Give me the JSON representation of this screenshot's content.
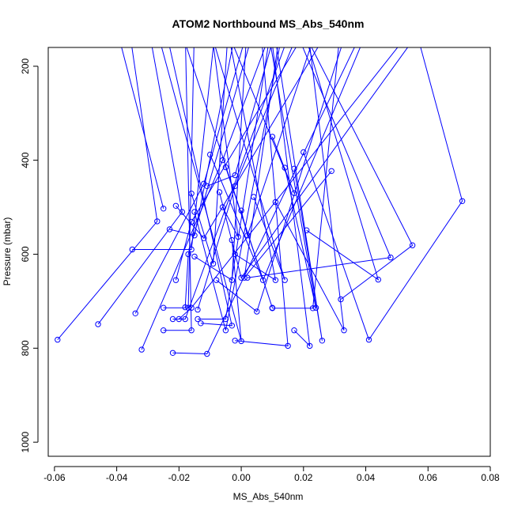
{
  "chart_data": {
    "type": "line",
    "title": "ATOM2 Northbound MS_Abs_540nm",
    "xlabel": "MS_Abs_540nm",
    "ylabel": "Pressure (mbar)",
    "xlim": [
      -0.062,
      0.08
    ],
    "ylim": [
      1030,
      160
    ],
    "y_axis_reversed": true,
    "x_ticks": [
      -0.06,
      -0.04,
      -0.02,
      0.0,
      0.02,
      0.04,
      0.06,
      0.08
    ],
    "x_tick_labels": [
      "-0.06",
      "-0.04",
      "-0.02",
      "0.00",
      "0.02",
      "0.04",
      "0.06",
      "0.08"
    ],
    "y_ticks": [
      200,
      400,
      600,
      800,
      1000
    ],
    "y_tick_labels": [
      "200",
      "400",
      "600",
      "800",
      "1000"
    ],
    "grid": false,
    "legend": "none",
    "series_color": "#0000ff",
    "marker": "open-circle",
    "series": [
      {
        "points": [
          [
            -0.059,
            782
          ],
          [
            -0.027,
            530
          ],
          [
            -0.036,
            120
          ]
        ]
      },
      {
        "points": [
          [
            -0.046,
            749
          ],
          [
            -0.019,
            510
          ],
          [
            -0.03,
            110
          ]
        ]
      },
      {
        "points": [
          [
            -0.035,
            590
          ],
          [
            -0.016,
            590
          ],
          [
            -0.008,
            100
          ]
        ]
      },
      {
        "points": [
          [
            -0.034,
            726
          ],
          [
            -0.012,
            450
          ],
          [
            0.003,
            100
          ]
        ]
      },
      {
        "points": [
          [
            -0.032,
            803
          ],
          [
            -0.006,
            400
          ],
          [
            0.011,
            100
          ]
        ]
      },
      {
        "points": [
          [
            -0.025,
            503
          ],
          [
            -0.04,
            120
          ]
        ]
      },
      {
        "points": [
          [
            -0.025,
            714
          ],
          [
            -0.017,
            714
          ],
          [
            -0.015,
            100
          ]
        ]
      },
      {
        "points": [
          [
            -0.025,
            762
          ],
          [
            -0.016,
            762
          ],
          [
            -0.018,
            120
          ]
        ]
      },
      {
        "points": [
          [
            -0.023,
            547
          ],
          [
            -0.015,
            560
          ],
          [
            -0.001,
            100
          ]
        ]
      },
      {
        "points": [
          [
            -0.022,
            738
          ],
          [
            -0.018,
            738
          ],
          [
            0.016,
            120
          ]
        ]
      },
      {
        "points": [
          [
            -0.022,
            810
          ],
          [
            -0.011,
            812
          ],
          [
            0.04,
            110
          ]
        ]
      },
      {
        "points": [
          [
            -0.021,
            655
          ],
          [
            -0.016,
            531
          ],
          [
            0.023,
            100
          ]
        ]
      },
      {
        "points": [
          [
            -0.021,
            497
          ],
          [
            -0.012,
            566
          ],
          [
            0.03,
            100
          ]
        ]
      },
      {
        "points": [
          [
            -0.02,
            738
          ],
          [
            -0.016,
            714
          ],
          [
            0.055,
            120
          ]
        ]
      },
      {
        "points": [
          [
            -0.018,
            713
          ],
          [
            -0.017,
            600
          ],
          [
            0.005,
            100
          ]
        ]
      },
      {
        "points": [
          [
            -0.016,
            471
          ],
          [
            -0.009,
            620
          ],
          [
            -0.004,
            100
          ]
        ]
      },
      {
        "points": [
          [
            -0.015,
            510
          ],
          [
            -0.005,
            762
          ],
          [
            0.014,
            100
          ]
        ]
      },
      {
        "points": [
          [
            -0.015,
            605
          ],
          [
            -0.003,
            655
          ],
          [
            0.002,
            100
          ]
        ]
      },
      {
        "points": [
          [
            -0.014,
            738
          ],
          [
            -0.005,
            738
          ],
          [
            0.01,
            100
          ]
        ]
      },
      {
        "points": [
          [
            -0.014,
            718
          ],
          [
            -0.002,
            455
          ],
          [
            0.02,
            100
          ]
        ]
      },
      {
        "points": [
          [
            -0.013,
            747
          ],
          [
            -0.003,
            752
          ],
          [
            -0.025,
            100
          ]
        ]
      },
      {
        "points": [
          [
            -0.011,
            455
          ],
          [
            -0.002,
            432
          ],
          [
            0.012,
            100
          ]
        ]
      },
      {
        "points": [
          [
            -0.01,
            388
          ],
          [
            0.007,
            655
          ],
          [
            0.042,
            100
          ]
        ]
      },
      {
        "points": [
          [
            -0.008,
            655
          ],
          [
            0.005,
            722
          ],
          [
            0.035,
            100
          ]
        ]
      },
      {
        "points": [
          [
            -0.007,
            468
          ],
          [
            0.0,
            650
          ],
          [
            0.06,
            100
          ]
        ]
      },
      {
        "points": [
          [
            -0.006,
            500
          ],
          [
            -0.001,
            563
          ],
          [
            -0.01,
            100
          ]
        ]
      },
      {
        "points": [
          [
            -0.005,
            415
          ],
          [
            0.01,
            714
          ],
          [
            -0.02,
            110
          ]
        ]
      },
      {
        "points": [
          [
            -0.003,
            570
          ],
          [
            0.0,
            785
          ],
          [
            -0.028,
            100
          ]
        ]
      },
      {
        "points": [
          [
            -0.002,
            600
          ],
          [
            0.011,
            655
          ],
          [
            -0.005,
            100
          ]
        ]
      },
      {
        "points": [
          [
            -0.002,
            784
          ],
          [
            0.015,
            795
          ],
          [
            0.006,
            100
          ]
        ]
      },
      {
        "points": [
          [
            0.0,
            507
          ],
          [
            0.002,
            560
          ],
          [
            0.025,
            105
          ]
        ]
      },
      {
        "points": [
          [
            0.002,
            650
          ],
          [
            0.048,
            607
          ],
          [
            0.016,
            100
          ]
        ]
      },
      {
        "points": [
          [
            0.004,
            478
          ],
          [
            0.014,
            655
          ],
          [
            -0.011,
            100
          ]
        ]
      },
      {
        "points": [
          [
            0.01,
            350
          ],
          [
            0.017,
            470
          ],
          [
            -0.006,
            100
          ]
        ]
      },
      {
        "points": [
          [
            0.01,
            715
          ],
          [
            0.023,
            715
          ],
          [
            0.032,
            110
          ]
        ]
      },
      {
        "points": [
          [
            0.011,
            489
          ],
          [
            0.033,
            762
          ],
          [
            0.021,
            100
          ]
        ]
      },
      {
        "points": [
          [
            0.014,
            416
          ],
          [
            0.024,
            714
          ],
          [
            0.008,
            100
          ]
        ]
      },
      {
        "points": [
          [
            0.017,
            418
          ],
          [
            0.026,
            784
          ],
          [
            0.01,
            100
          ]
        ]
      },
      {
        "points": [
          [
            0.017,
            762
          ],
          [
            0.022,
            795
          ],
          [
            0.009,
            100
          ]
        ]
      },
      {
        "points": [
          [
            0.02,
            383
          ],
          [
            0.041,
            782
          ],
          [
            0.071,
            487
          ],
          [
            0.056,
            120
          ]
        ]
      },
      {
        "points": [
          [
            0.021,
            549
          ],
          [
            0.044,
            654
          ],
          [
            0.019,
            100
          ]
        ]
      },
      {
        "points": [
          [
            0.029,
            423
          ],
          [
            0.001,
            650
          ],
          [
            0.013,
            100
          ]
        ]
      },
      {
        "points": [
          [
            0.032,
            696
          ],
          [
            0.055,
            581
          ],
          [
            0.018,
            100
          ]
        ]
      }
    ]
  }
}
